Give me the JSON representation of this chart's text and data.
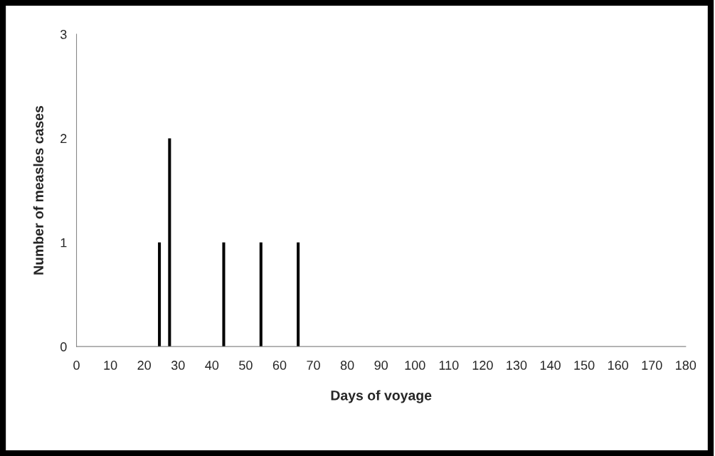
{
  "chart_data": {
    "type": "bar",
    "xlabel": "Days of voyage",
    "ylabel": "Number of measles cases",
    "x": [
      24.5,
      27.5,
      43.5,
      54.5,
      65.5
    ],
    "values": [
      1,
      2,
      1,
      1,
      1
    ],
    "color": "#000000",
    "xlim": [
      0,
      180
    ],
    "xticks": [
      0,
      10,
      20,
      30,
      40,
      50,
      60,
      70,
      80,
      90,
      100,
      110,
      120,
      130,
      140,
      150,
      160,
      170,
      180
    ],
    "ylim": [
      0,
      3
    ],
    "yticks": [
      0,
      1,
      2,
      3
    ],
    "grid": false,
    "legend": false
  }
}
